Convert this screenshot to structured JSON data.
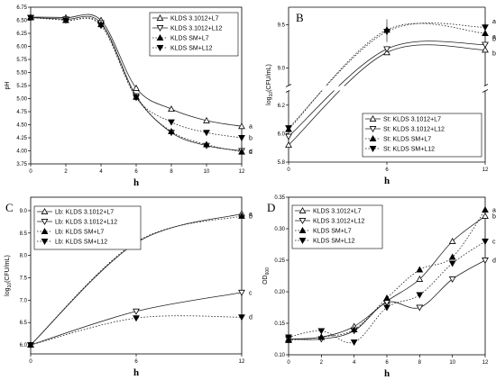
{
  "chart_data": [
    {
      "panel_label": "",
      "type": "line",
      "xlabel": "h",
      "ylabel": "pH",
      "xlim": [
        0,
        12
      ],
      "ylim": [
        3.75,
        6.75
      ],
      "xticks": [
        "0",
        "2",
        "4",
        "6",
        "8",
        "10",
        "12"
      ],
      "yticks": [
        "3.75",
        "4.00",
        "4.25",
        "4.50",
        "4.75",
        "5.00",
        "5.25",
        "5.50",
        "5.75",
        "6.00",
        "6.25",
        "6.50",
        "6.75"
      ],
      "legend_position": "top-right",
      "series": [
        {
          "name": "KLDS 3.1012+L7",
          "marker": "open-up",
          "dash": "solid",
          "x": [
            0,
            2,
            4,
            6,
            8,
            10,
            12
          ],
          "y": [
            6.56,
            6.55,
            6.5,
            5.2,
            4.8,
            4.58,
            4.47
          ],
          "label": "a"
        },
        {
          "name": "KLDS 3.1012+L12",
          "marker": "open-down",
          "dash": "solid",
          "x": [
            0,
            2,
            4,
            6,
            8,
            10,
            12
          ],
          "y": [
            6.55,
            6.52,
            6.45,
            5.05,
            4.35,
            4.1,
            4.0
          ],
          "label": "c"
        },
        {
          "name": "KLDS SM+L7",
          "marker": "filled-up",
          "dash": "dot",
          "x": [
            0,
            2,
            4,
            6,
            8,
            10,
            12
          ],
          "y": [
            6.55,
            6.5,
            6.42,
            5.03,
            4.37,
            4.12,
            3.98
          ],
          "label": "d"
        },
        {
          "name": "KLDS SM+L12",
          "marker": "filled-down",
          "dash": "dot",
          "x": [
            0,
            2,
            4,
            6,
            8,
            10,
            12
          ],
          "y": [
            6.55,
            6.5,
            6.4,
            5.02,
            4.55,
            4.35,
            4.25
          ],
          "label": "b"
        }
      ]
    },
    {
      "panel_label": "B",
      "type": "line",
      "xlabel": "h",
      "ylabel": "log10(CFU/mL)",
      "ylabel_main": "log",
      "ylabel_sub": "10",
      "ylabel_rest": "(CFU/mL)",
      "xlim": [
        0,
        12
      ],
      "ylim_lower": [
        5.8,
        6.3
      ],
      "ylim_upper": [
        8.8,
        9.7
      ],
      "axis_break": true,
      "xticks": [
        "0",
        "6",
        "12"
      ],
      "yticks_lower": [
        "5.8",
        "6.0",
        "6.2"
      ],
      "yticks_upper": [
        "9.0",
        "9.5"
      ],
      "legend_position": "bottom-right",
      "series": [
        {
          "name": "St: KLDS 3.1012+L7",
          "marker": "open-up",
          "dash": "solid",
          "x": [
            0,
            6,
            12
          ],
          "y": [
            5.92,
            9.18,
            9.21
          ],
          "label": "b"
        },
        {
          "name": "St: KLDS 3.1012+L12",
          "marker": "open-down",
          "dash": "solid",
          "x": [
            0,
            6,
            12
          ],
          "y": [
            5.98,
            9.22,
            9.27
          ],
          "label": "b"
        },
        {
          "name": "St: KLDS SM+L7",
          "marker": "filled-up",
          "dash": "dot",
          "x": [
            0,
            6,
            12
          ],
          "y": [
            6.03,
            9.44,
            9.4
          ],
          "label": "a"
        },
        {
          "name": "St: KLDS SM+L12",
          "marker": "filled-down",
          "dash": "dot",
          "x": [
            0,
            6,
            12
          ],
          "y": [
            6.04,
            9.42,
            9.47
          ],
          "label": "a"
        }
      ]
    },
    {
      "panel_label": "C",
      "type": "line",
      "xlabel": "h",
      "ylabel": "log10(CFU/mL)",
      "ylabel_main": "log",
      "ylabel_sub": "10",
      "ylabel_rest": "(CFU/mL)",
      "xlim": [
        0,
        12
      ],
      "ylim": [
        5.8,
        9.3
      ],
      "xticks": [
        "0",
        "6",
        "12"
      ],
      "yticks": [
        "6.0",
        "6.5",
        "7.0",
        "7.5",
        "8.0",
        "8.5",
        "9.0"
      ],
      "legend_position": "top-left",
      "series": [
        {
          "name": "Lb: KLDS 3.1012+L7",
          "marker": "open-up",
          "dash": "solid",
          "x": [
            0,
            6,
            12
          ],
          "y": [
            6.0,
            8.28,
            8.93
          ],
          "label": "a"
        },
        {
          "name": "Lb: KLDS 3.1012+L12",
          "marker": "open-down",
          "dash": "solid",
          "x": [
            0,
            6,
            12
          ],
          "y": [
            6.0,
            6.75,
            7.17
          ],
          "label": "c"
        },
        {
          "name": "Lb: KLDS SM+L7",
          "marker": "filled-up",
          "dash": "dot",
          "x": [
            0,
            6,
            12
          ],
          "y": [
            6.0,
            8.3,
            8.88
          ],
          "label": "b"
        },
        {
          "name": "Lb: KLDS SM+L12",
          "marker": "filled-down",
          "dash": "dot",
          "x": [
            0,
            6,
            12
          ],
          "y": [
            6.0,
            6.6,
            6.62
          ],
          "label": "d"
        }
      ]
    },
    {
      "panel_label": "D",
      "type": "line",
      "xlabel": "h",
      "ylabel": "OD600",
      "ylabel_main": "OD",
      "ylabel_sub": "600",
      "ylabel_rest": "",
      "xlim": [
        0,
        12
      ],
      "ylim": [
        0.1,
        0.35
      ],
      "xticks": [
        "0",
        "2",
        "4",
        "6",
        "8",
        "10",
        "12"
      ],
      "yticks": [
        "0.10",
        "0.15",
        "0.20",
        "0.25",
        "0.30",
        "0.35"
      ],
      "legend_position": "top-left",
      "series": [
        {
          "name": "KLDS 3.1012+L7",
          "marker": "open-up",
          "dash": "solid",
          "x": [
            0,
            2,
            4,
            6,
            8,
            10,
            12
          ],
          "y": [
            0.125,
            0.128,
            0.145,
            0.185,
            0.22,
            0.28,
            0.32
          ],
          "label": "b"
        },
        {
          "name": "KLDS 3.1012+L12",
          "marker": "open-down",
          "dash": "solid",
          "x": [
            0,
            2,
            4,
            6,
            8,
            10,
            12
          ],
          "y": [
            0.125,
            0.125,
            0.138,
            0.183,
            0.175,
            0.22,
            0.25
          ],
          "label": "d"
        },
        {
          "name": "KLDS SM+L7",
          "marker": "filled-up",
          "dash": "dot",
          "x": [
            0,
            2,
            4,
            6,
            8,
            10,
            12
          ],
          "y": [
            0.123,
            0.128,
            0.14,
            0.19,
            0.235,
            0.255,
            0.33
          ],
          "label": "a"
        },
        {
          "name": "KLDS SM+L12",
          "marker": "filled-down",
          "dash": "dot",
          "x": [
            0,
            2,
            4,
            6,
            8,
            10,
            12
          ],
          "y": [
            0.128,
            0.138,
            0.12,
            0.175,
            0.195,
            0.245,
            0.28
          ],
          "label": "c"
        }
      ]
    }
  ]
}
